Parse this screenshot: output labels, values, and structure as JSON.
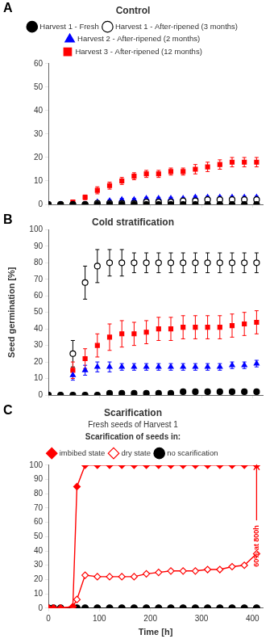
{
  "chart_data": [
    {
      "type": "scatter",
      "panel_label": "A",
      "title": "Control",
      "xlim": [
        0,
        420
      ],
      "xticks": [
        0,
        100,
        200,
        300,
        400
      ],
      "ylim": [
        0,
        60
      ],
      "yticks": [
        0,
        10,
        20,
        30,
        40,
        50,
        60
      ],
      "grid": false,
      "legend": "top",
      "tick_labels": "y",
      "series": [
        {
          "name": "Harvest 1 - Fresh",
          "color": "black",
          "marker": "filled circle",
          "x": [
            0,
            24,
            48,
            72,
            96,
            120,
            144,
            168,
            192,
            216,
            240,
            264,
            288,
            312,
            336,
            360,
            384,
            408
          ],
          "values": [
            0,
            0,
            0,
            0,
            0,
            0,
            0,
            0,
            0,
            0,
            0,
            0,
            0,
            0,
            0,
            0,
            0,
            0
          ],
          "yerr": [
            0,
            0,
            0,
            0,
            0,
            0,
            0,
            0,
            0,
            0,
            0,
            0,
            0,
            0,
            0,
            0,
            0,
            0
          ]
        },
        {
          "name": "Harvest 1 - After-ripened (3 months)",
          "color": "black",
          "marker": "open circle",
          "x": [
            0,
            24,
            48,
            72,
            96,
            120,
            144,
            168,
            192,
            216,
            240,
            264,
            288,
            312,
            336,
            360,
            384,
            408
          ],
          "values": [
            0,
            0,
            0,
            0,
            0.5,
            0.5,
            0.5,
            0.5,
            1,
            1,
            1,
            1.5,
            1.5,
            2,
            2,
            2,
            2,
            2
          ],
          "yerr": [
            0,
            0,
            0,
            0,
            0.3,
            0.3,
            0.3,
            0.3,
            0.4,
            0.4,
            0.4,
            0.5,
            0.5,
            0.5,
            0.5,
            0.5,
            0.5,
            0.5
          ]
        },
        {
          "name": "Harvest 2 - After-ripened (2 months)",
          "color": "blue",
          "marker": "filled triangle",
          "x": [
            0,
            24,
            48,
            72,
            96,
            120,
            144,
            168,
            192,
            216,
            240,
            264,
            288,
            312,
            336,
            360,
            384,
            408
          ],
          "values": [
            0,
            0,
            0,
            0,
            1,
            1.5,
            2,
            2,
            2.5,
            2.5,
            2.5,
            2.5,
            3,
            3,
            3,
            3,
            3,
            3
          ],
          "yerr": [
            0,
            0,
            0,
            0,
            0.5,
            0.5,
            0.5,
            0.5,
            0.5,
            0.5,
            0.5,
            0.5,
            0.5,
            0.5,
            0.5,
            0.5,
            0.5,
            0.5
          ]
        },
        {
          "name": "Harvest 3 - After-ripened (12 months)",
          "color": "red",
          "marker": "filled square",
          "x": [
            0,
            24,
            48,
            72,
            96,
            120,
            144,
            168,
            192,
            216,
            240,
            264,
            288,
            312,
            336,
            360,
            384,
            408
          ],
          "values": [
            0,
            0,
            1,
            3,
            6,
            8,
            10,
            12,
            13,
            13,
            14,
            14,
            15,
            16,
            17,
            18,
            18,
            18
          ],
          "yerr": [
            0,
            0,
            0.5,
            1,
            1.5,
            1.5,
            1.5,
            1.5,
            1.5,
            1.5,
            1.5,
            1.5,
            2,
            2,
            2,
            2,
            2,
            2
          ]
        }
      ]
    },
    {
      "type": "scatter",
      "panel_label": "B",
      "title": "Cold stratification",
      "ylabel": "Seed germination [%]",
      "xlim": [
        0,
        420
      ],
      "xticks": [
        0,
        100,
        200,
        300,
        400
      ],
      "ylim": [
        0,
        100
      ],
      "yticks": [
        0,
        10,
        20,
        30,
        40,
        50,
        60,
        70,
        80,
        90,
        100
      ],
      "grid": false,
      "tick_labels": "y",
      "series": [
        {
          "name": "Harvest 1 - Fresh",
          "color": "black",
          "marker": "filled circle",
          "x": [
            0,
            24,
            48,
            72,
            96,
            120,
            144,
            168,
            192,
            216,
            240,
            264,
            288,
            312,
            336,
            360,
            384,
            408
          ],
          "values": [
            0,
            0,
            0,
            0,
            0,
            1,
            1,
            1,
            1,
            1,
            1,
            2,
            2,
            2,
            2,
            2,
            2,
            2
          ],
          "yerr": [
            0,
            0,
            0,
            0,
            0,
            0.5,
            0.5,
            0.5,
            0.5,
            0.5,
            0.5,
            0.5,
            0.5,
            0.5,
            0.5,
            0.5,
            0.5,
            0.5
          ]
        },
        {
          "name": "Harvest 1 - After-ripened (3 months)",
          "color": "black",
          "marker": "open circle",
          "x": [
            0,
            48,
            72,
            96,
            120,
            144,
            168,
            192,
            216,
            240,
            264,
            288,
            312,
            336,
            360,
            384,
            408
          ],
          "values": [
            0,
            25,
            68,
            78,
            80,
            80,
            80,
            80,
            80,
            80,
            80,
            80,
            80,
            80,
            80,
            80,
            80
          ],
          "yerr": [
            0,
            8,
            10,
            10,
            8,
            8,
            6,
            6,
            6,
            6,
            6,
            6,
            6,
            6,
            6,
            6,
            6
          ]
        },
        {
          "name": "Harvest 2 - After-ripened (2 months)",
          "color": "blue",
          "marker": "filled triangle",
          "x": [
            0,
            48,
            72,
            96,
            120,
            144,
            168,
            192,
            216,
            240,
            264,
            288,
            312,
            336,
            360,
            384,
            408
          ],
          "values": [
            0,
            12,
            15,
            17,
            17,
            17,
            17,
            17,
            17,
            17,
            17,
            17,
            17,
            17,
            18,
            18,
            19
          ],
          "yerr": [
            0,
            3,
            3,
            3,
            3,
            2,
            2,
            2,
            2,
            2,
            2,
            2,
            2,
            2,
            2,
            2,
            2
          ]
        },
        {
          "name": "Harvest 3 - After-ripened (12 months)",
          "color": "red",
          "marker": "filled square",
          "x": [
            0,
            48,
            72,
            96,
            120,
            144,
            168,
            192,
            216,
            240,
            264,
            288,
            312,
            336,
            360,
            384,
            408
          ],
          "values": [
            0,
            15,
            22,
            30,
            35,
            37,
            37,
            38,
            40,
            40,
            41,
            41,
            41,
            41,
            42,
            43,
            44
          ],
          "yerr": [
            0,
            5,
            6,
            7,
            8,
            8,
            7,
            7,
            7,
            7,
            7,
            7,
            7,
            7,
            7,
            7,
            7
          ]
        }
      ]
    },
    {
      "type": "line",
      "panel_label": "C",
      "title": "Scarification",
      "subtitle": "Fresh seeds of Harvest 1",
      "legend_title": "Scarification of seeds in:",
      "xlabel": "Time [h]",
      "xlim": [
        0,
        420
      ],
      "xticks": [
        0,
        100,
        200,
        300,
        400
      ],
      "ylim": [
        0,
        100
      ],
      "yticks": [
        0,
        10,
        20,
        30,
        40,
        50,
        60,
        70,
        80,
        90,
        100
      ],
      "grid": false,
      "legend": "top",
      "annotations": [
        {
          "text": "60% at 800h",
          "x": 408,
          "y": 58,
          "color": "red"
        }
      ],
      "series": [
        {
          "name": "imbibed state",
          "color": "red",
          "marker": "filled diamond",
          "x": [
            0,
            10,
            24,
            48,
            56,
            72,
            96,
            120,
            144,
            168,
            192,
            216,
            240,
            264,
            288,
            312,
            336,
            360,
            384,
            408
          ],
          "values": [
            0,
            0,
            0,
            1,
            85,
            100,
            100,
            100,
            100,
            100,
            100,
            100,
            100,
            100,
            100,
            100,
            100,
            100,
            100,
            100
          ]
        },
        {
          "name": "dry state",
          "color": "red",
          "marker": "open diamond",
          "x": [
            0,
            10,
            24,
            48,
            56,
            72,
            96,
            120,
            144,
            168,
            192,
            216,
            240,
            264,
            288,
            312,
            336,
            360,
            384,
            408
          ],
          "values": [
            0,
            0,
            0,
            1,
            6,
            23,
            22,
            22,
            22,
            22,
            24,
            25,
            26,
            26,
            26,
            27,
            27,
            29,
            30,
            38
          ]
        },
        {
          "name": "no scarification",
          "color": "black",
          "marker": "filled circle",
          "x": [
            0,
            10,
            24,
            48,
            56,
            72,
            96,
            120,
            144,
            168,
            192,
            216,
            240,
            264,
            288,
            312,
            336,
            360,
            384,
            408
          ],
          "values": [
            0,
            0,
            0,
            0,
            0,
            0,
            0,
            0,
            0,
            0,
            0,
            0,
            0,
            0,
            0,
            0,
            0,
            0,
            0,
            0
          ]
        }
      ]
    }
  ]
}
